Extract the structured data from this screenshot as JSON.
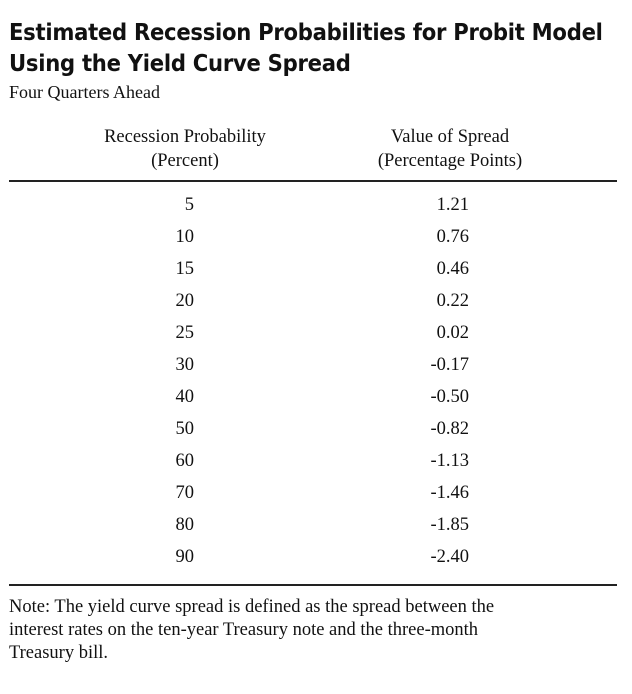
{
  "title": {
    "line1": "Estimated Recession Probabilities for Probit Model",
    "line2": "Using the Yield Curve Spread"
  },
  "subtitle": "Four Quarters Ahead",
  "columns": {
    "probability": {
      "line1": "Recession Probability",
      "line2": "(Percent)"
    },
    "spread": {
      "line1": "Value of Spread",
      "line2": "(Percentage Points)"
    }
  },
  "rows": [
    {
      "probability": "5",
      "spread": "1.21"
    },
    {
      "probability": "10",
      "spread": "0.76"
    },
    {
      "probability": "15",
      "spread": "0.46"
    },
    {
      "probability": "20",
      "spread": "0.22"
    },
    {
      "probability": "25",
      "spread": "0.02"
    },
    {
      "probability": "30",
      "spread": "-0.17"
    },
    {
      "probability": "40",
      "spread": "-0.50"
    },
    {
      "probability": "50",
      "spread": "-0.82"
    },
    {
      "probability": "60",
      "spread": "-1.13"
    },
    {
      "probability": "70",
      "spread": "-1.46"
    },
    {
      "probability": "80",
      "spread": "-1.85"
    },
    {
      "probability": "90",
      "spread": "-2.40"
    }
  ],
  "note": {
    "line1": "Note:  The yield curve spread is defined as the spread between the",
    "line2": "interest rates on the ten-year Treasury note and the three-month",
    "line3": "Treasury bill."
  }
}
